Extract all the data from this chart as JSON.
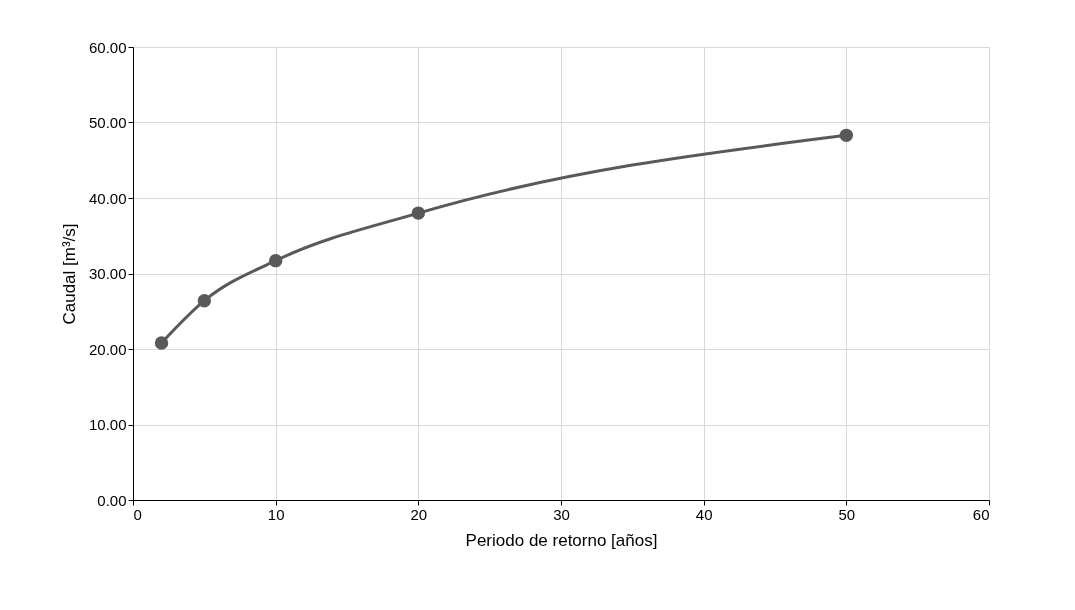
{
  "chart_data": {
    "type": "line",
    "xlabel": "Periodo de retorno [años]",
    "ylabel": "Caudal [m³/s]",
    "x": [
      2,
      5,
      10,
      20,
      50
    ],
    "series": [
      {
        "color": "#595959",
        "values": [
          20.8,
          26.4,
          31.7,
          38.0,
          48.3
        ]
      }
    ],
    "xlim": [
      0,
      60
    ],
    "xticks": [
      0,
      10,
      20,
      30,
      40,
      50,
      60
    ],
    "ylim": [
      0,
      60
    ],
    "yticks": [
      {
        "value": 0,
        "label": "0.00"
      },
      {
        "value": 10,
        "label": "10.00"
      },
      {
        "value": 20,
        "label": "20.00"
      },
      {
        "value": 30,
        "label": "30.00"
      },
      {
        "value": 40,
        "label": "40.00"
      },
      {
        "value": 50,
        "label": "50.00"
      },
      {
        "value": 60,
        "label": "60.00"
      }
    ],
    "grid": true,
    "marker": "circle",
    "line_style": "solid"
  }
}
